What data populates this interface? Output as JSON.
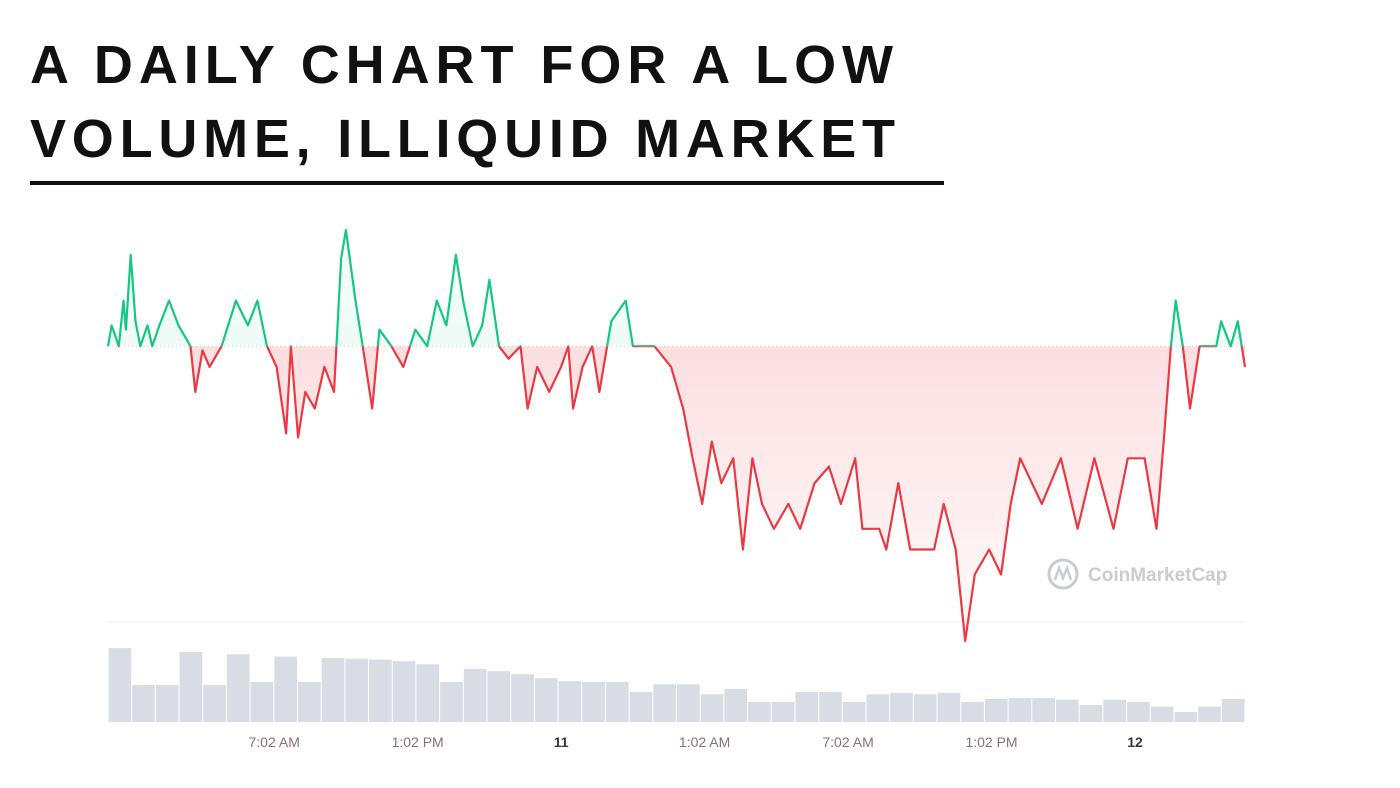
{
  "chart_data": [
    {
      "type": "line",
      "title": [
        "A DAILY CHART FOR A LOW",
        "VOLUME, ILLIQUID MARKET"
      ],
      "watermark": "CoinMarketCap",
      "x": [
        -18.95,
        -18.8,
        -18.5,
        -18.3,
        -18.2,
        -18.0,
        -17.8,
        -17.6,
        -17.3,
        -17.1,
        -16.8,
        -16.4,
        -16.0,
        -15.5,
        -15.3,
        -15.0,
        -14.7,
        -14.2,
        -13.6,
        -13.1,
        -12.7,
        -12.3,
        -11.9,
        -11.5,
        -11.3,
        -11.0,
        -10.7,
        -10.3,
        -9.9,
        -9.5,
        -9.2,
        -9.0,
        -8.6,
        -8.3,
        -7.9,
        -7.6,
        -7.1,
        -6.6,
        -6.1,
        -5.6,
        -5.2,
        -4.8,
        -4.4,
        -4.1,
        -3.7,
        -3.3,
        -3.0,
        -2.6,
        -2.2,
        -1.7,
        -1.4,
        -1.0,
        -0.5,
        0.0,
        0.3,
        0.5,
        0.9,
        1.3,
        1.6,
        2.1,
        2.7,
        3.0,
        3.9,
        4.6,
        5.1,
        5.5,
        5.9,
        6.3,
        6.7,
        7.2,
        7.6,
        8.0,
        8.4,
        8.9,
        9.5,
        10.0,
        10.6,
        11.2,
        11.7,
        12.3,
        12.6,
        13.3,
        13.6,
        14.1,
        14.6,
        15.6,
        16.0,
        16.5,
        16.9,
        17.3,
        17.9,
        18.4,
        18.8,
        19.2,
        20.1,
        20.9,
        21.6,
        22.3,
        23.1,
        23.7,
        24.4,
        24.9,
        25.2,
        25.5,
        25.7,
        26.0,
        26.3,
        26.7,
        27.4,
        27.6,
        28.0,
        28.3,
        28.6
      ],
      "values": [
        72,
        77,
        72,
        83,
        76,
        94,
        78,
        72,
        77,
        72,
        77,
        83,
        77,
        72,
        61,
        71,
        67,
        72,
        83,
        77,
        83,
        72,
        67,
        51,
        72,
        50,
        61,
        57,
        67,
        61,
        93,
        100,
        83,
        72,
        57,
        76,
        72,
        67,
        76,
        72,
        83,
        77,
        94,
        83,
        72,
        77,
        88,
        72,
        69,
        72,
        57,
        67,
        61,
        67,
        72,
        57,
        67,
        72,
        61,
        78,
        83,
        72,
        72,
        67,
        57,
        45,
        34,
        49,
        39,
        45,
        23,
        45,
        34,
        28,
        34,
        28,
        39,
        43,
        34,
        45,
        28,
        28,
        23,
        39,
        23,
        23,
        34,
        23,
        1,
        17,
        23,
        17,
        34,
        45,
        34,
        45,
        28,
        45,
        28,
        45,
        45,
        28,
        49,
        72,
        83,
        72,
        57,
        72,
        72,
        78,
        72,
        78,
        67
      ],
      "xlim": [
        -18.95,
        28.6
      ],
      "ylim": [
        0,
        100
      ],
      "baseline": 72,
      "up_color": "#16c784",
      "down_color": "#ea3943",
      "xticks": [
        {
          "value": -12,
          "label": "7:02 AM"
        },
        {
          "value": -6,
          "label": "1:02 PM"
        },
        {
          "value": 0,
          "label": "11"
        },
        {
          "value": 6,
          "label": "1:02 AM"
        },
        {
          "value": 12,
          "label": "7:02 AM"
        },
        {
          "value": 18,
          "label": "1:02 PM"
        },
        {
          "value": 24,
          "label": "12"
        }
      ]
    },
    {
      "type": "bar",
      "values": [
        96,
        48,
        48,
        91,
        48,
        88,
        52,
        85,
        52,
        83,
        82,
        81,
        79,
        75,
        52,
        69,
        66,
        62,
        57,
        53,
        52,
        52,
        39,
        49,
        49,
        36,
        43,
        26,
        26,
        39,
        39,
        26,
        36,
        38,
        36,
        38,
        26,
        30,
        31,
        31,
        29,
        22,
        29,
        26,
        20,
        13,
        20,
        30
      ],
      "ylim": [
        0,
        100
      ],
      "color": "#d9dde3"
    }
  ]
}
